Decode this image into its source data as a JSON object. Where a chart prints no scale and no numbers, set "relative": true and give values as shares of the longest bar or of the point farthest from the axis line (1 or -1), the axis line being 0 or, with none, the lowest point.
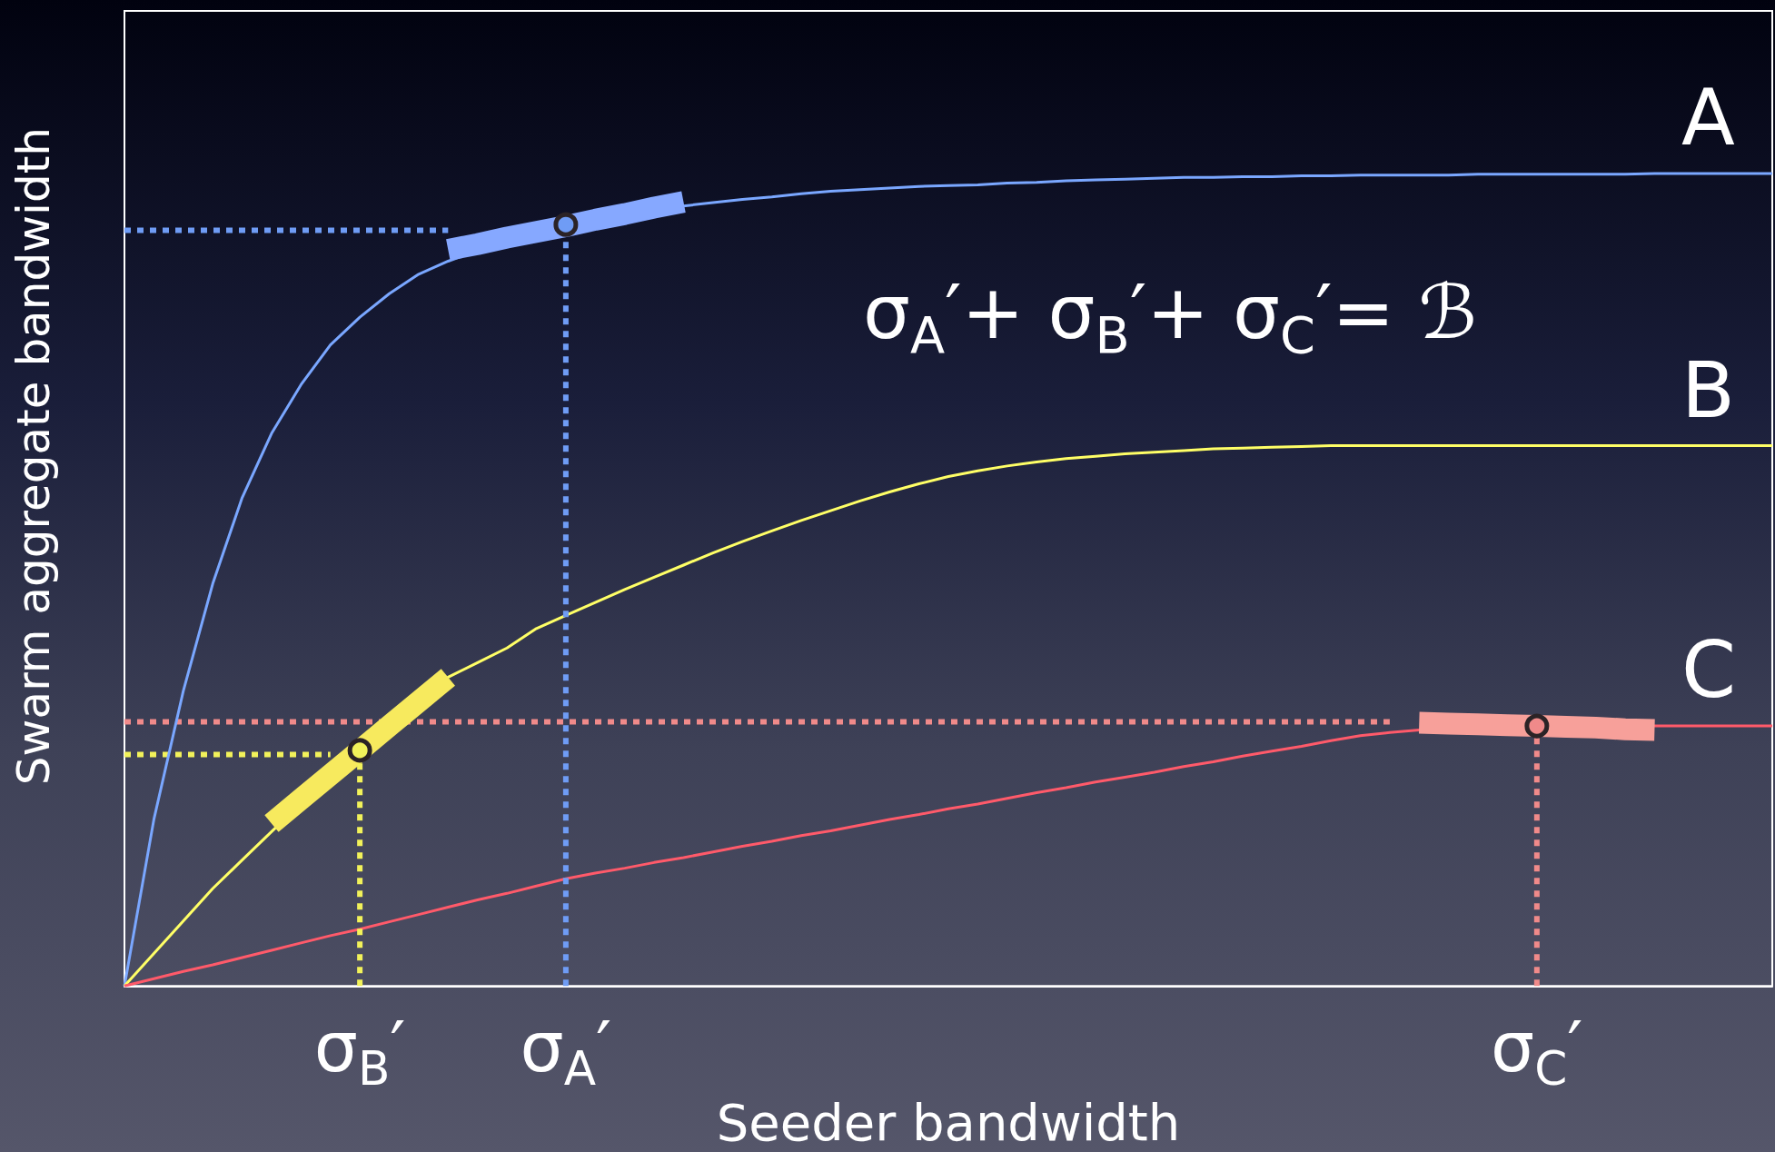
{
  "chart_data": {
    "type": "line",
    "relative": true,
    "xlabel": "Seeder bandwidth",
    "ylabel": "Swarm aggregate bandwidth",
    "legend": false,
    "grid": false,
    "annotations": [
      "σ$_{A}$′+ σ$_{B}$′+ σ$_{C}$′= ℬ"
    ],
    "categories": [
      null,
      null,
      null,
      null,
      null,
      null,
      null,
      null,
      "σ$_{B}$′",
      null,
      null,
      null,
      null,
      null,
      null,
      "σ$_{A}$′",
      null,
      null,
      null,
      null,
      null,
      null,
      null,
      null,
      null,
      null,
      null,
      null,
      null,
      null,
      null,
      null,
      null,
      null,
      null,
      null,
      null,
      null,
      null,
      null,
      null,
      null,
      null,
      null,
      null,
      null,
      null,
      null,
      "σ$_{C}$′",
      null,
      null,
      null,
      null,
      null,
      null,
      null,
      null
    ],
    "series": [
      {
        "color": "#6f9cf5",
        "line_style": "dotted",
        "values": [
          0.93,
          0.93,
          0.93,
          0.93,
          0.93,
          0.93,
          0.93,
          0.93,
          0.93,
          0.93,
          0.93,
          0.93,
          null,
          null,
          null,
          null,
          null,
          null,
          null,
          null,
          null,
          null,
          null,
          null,
          null,
          null,
          null,
          null,
          null,
          null,
          null,
          null,
          null,
          null,
          null,
          null,
          null,
          null,
          null,
          null,
          null,
          null,
          null,
          null,
          null,
          null,
          null,
          null,
          null,
          null,
          null,
          null,
          null,
          null,
          null,
          null,
          null
        ]
      },
      {
        "color": "#f2f25a",
        "line_style": "dotted",
        "values": [
          0.285,
          0.285,
          0.285,
          0.285,
          0.285,
          0.285,
          0.285,
          0.285,
          null,
          null,
          null,
          null,
          null,
          null,
          null,
          null,
          null,
          null,
          null,
          null,
          null,
          null,
          null,
          null,
          null,
          null,
          null,
          null,
          null,
          null,
          null,
          null,
          null,
          null,
          null,
          null,
          null,
          null,
          null,
          null,
          null,
          null,
          null,
          null,
          null,
          null,
          null,
          null,
          null,
          null,
          null,
          null,
          null,
          null,
          null,
          null,
          null
        ]
      },
      {
        "color": "#f08a8a",
        "line_style": "dotted",
        "values": [
          0.325,
          0.325,
          0.325,
          0.325,
          0.325,
          0.325,
          0.325,
          0.325,
          0.325,
          0.325,
          0.325,
          0.325,
          0.325,
          0.325,
          0.325,
          0.325,
          0.325,
          0.325,
          0.325,
          0.325,
          0.325,
          0.325,
          0.325,
          0.325,
          0.325,
          0.325,
          0.325,
          0.325,
          0.325,
          0.325,
          0.325,
          0.325,
          0.325,
          0.325,
          0.325,
          0.325,
          0.325,
          0.325,
          0.325,
          0.325,
          0.325,
          0.325,
          0.325,
          0.325,
          null,
          null,
          null,
          null,
          null,
          null,
          null,
          null,
          null,
          null,
          null,
          null,
          null
        ]
      },
      {
        "name": "A",
        "color": "#7aa7ff",
        "values": [
          0,
          0.205,
          0.363,
          0.495,
          0.601,
          0.68,
          0.74,
          0.789,
          0.823,
          0.852,
          0.876,
          0.892,
          0.905,
          0.918,
          0.929,
          0.937,
          0.945,
          0.951,
          0.956,
          0.96,
          0.964,
          0.968,
          0.971,
          0.975,
          0.978,
          0.98,
          0.982,
          0.984,
          0.985,
          0.986,
          0.988,
          0.989,
          0.991,
          0.992,
          0.993,
          0.994,
          0.995,
          0.995,
          0.996,
          0.996,
          0.997,
          0.997,
          0.998,
          0.998,
          0.998,
          0.998,
          0.999,
          0.999,
          0.999,
          0.999,
          0.999,
          0.999,
          1,
          1,
          1,
          1,
          1
        ]
      },
      {
        "name": "B",
        "color": "#ffff66",
        "values": [
          0,
          0.04,
          0.08,
          0.12,
          0.155,
          0.19,
          0.225,
          0.258,
          0.29,
          0.322,
          0.352,
          0.38,
          0.398,
          0.416,
          0.44,
          0.456,
          0.472,
          0.488,
          0.503,
          0.518,
          0.533,
          0.547,
          0.56,
          0.573,
          0.585,
          0.597,
          0.608,
          0.618,
          0.627,
          0.634,
          0.64,
          0.645,
          0.649,
          0.652,
          0.655,
          0.657,
          0.659,
          0.661,
          0.662,
          0.663,
          0.664,
          0.665,
          0.665,
          0.665,
          0.665,
          0.665,
          0.665,
          0.665,
          0.665,
          0.665,
          0.665,
          0.665,
          0.665,
          0.665,
          0.665,
          0.665,
          0.665
        ]
      },
      {
        "name": "C",
        "color": "#ff5a6a",
        "values": [
          0,
          0.009,
          0.018,
          0.026,
          0.035,
          0.044,
          0.053,
          0.062,
          0.07,
          0.079,
          0.088,
          0.097,
          0.106,
          0.114,
          0.123,
          0.132,
          0.139,
          0.145,
          0.152,
          0.158,
          0.165,
          0.172,
          0.178,
          0.185,
          0.191,
          0.198,
          0.205,
          0.211,
          0.218,
          0.224,
          0.231,
          0.238,
          0.244,
          0.251,
          0.257,
          0.263,
          0.27,
          0.276,
          0.283,
          0.289,
          0.295,
          0.302,
          0.308,
          0.312,
          0.315,
          0.317,
          0.319,
          0.32,
          0.32,
          0.32,
          0.32,
          0.32,
          0.32,
          0.32,
          0.32,
          0.32,
          0.32
        ]
      },
      {
        "color": "#86a8ff",
        "line_style": "solid",
        "values": [
          null,
          null,
          null,
          null,
          null,
          null,
          null,
          null,
          null,
          null,
          null,
          0.906,
          0.913,
          0.921,
          0.928,
          0.935,
          0.943,
          0.95,
          0.958,
          0.965,
          null,
          null,
          null,
          null,
          null,
          null,
          null,
          null,
          null,
          null,
          null,
          null,
          null,
          null,
          null,
          null,
          null,
          null,
          null,
          null,
          null,
          null,
          null,
          null,
          null,
          null,
          null,
          null,
          null,
          null,
          null,
          null,
          null,
          null,
          null,
          null,
          null
        ]
      },
      {
        "color": "#f7ea5e",
        "line_style": "solid",
        "values": [
          null,
          null,
          null,
          null,
          null,
          0.2,
          0.23,
          0.26,
          0.29,
          0.32,
          0.35,
          0.38,
          null,
          null,
          null,
          null,
          null,
          null,
          null,
          null,
          null,
          null,
          null,
          null,
          null,
          null,
          null,
          null,
          null,
          null,
          null,
          null,
          null,
          null,
          null,
          null,
          null,
          null,
          null,
          null,
          null,
          null,
          null,
          null,
          null,
          null,
          null,
          null,
          null,
          null,
          null,
          null,
          null,
          null,
          null,
          null,
          null
        ]
      },
      {
        "color": "#f7a09a",
        "line_style": "solid",
        "values": [
          null,
          null,
          null,
          null,
          null,
          null,
          null,
          null,
          null,
          null,
          null,
          null,
          null,
          null,
          null,
          null,
          null,
          null,
          null,
          null,
          null,
          null,
          null,
          null,
          null,
          null,
          null,
          null,
          null,
          null,
          null,
          null,
          null,
          null,
          null,
          null,
          null,
          null,
          null,
          null,
          null,
          null,
          null,
          null,
          0.324,
          0.323,
          0.322,
          0.321,
          0.32,
          0.319,
          0.318,
          0.316,
          0.315,
          null,
          null,
          null,
          null
        ]
      },
      {
        "type": "lollipop",
        "color": "#f2f25a",
        "line_style": "dotted",
        "marker": "circle",
        "values": [
          null,
          null,
          null,
          null,
          null,
          null,
          null,
          null,
          0.29,
          null,
          null,
          null,
          null,
          null,
          null,
          null,
          null,
          null,
          null,
          null,
          null,
          null,
          null,
          null,
          null,
          null,
          null,
          null,
          null,
          null,
          null,
          null,
          null,
          null,
          null,
          null,
          null,
          null,
          null,
          null,
          null,
          null,
          null,
          null,
          null,
          null,
          null,
          null,
          null,
          null,
          null,
          null,
          null,
          null,
          null,
          null,
          null
        ]
      },
      {
        "type": "lollipop",
        "color": "#6f9cf5",
        "line_style": "dotted",
        "marker": "circle",
        "values": [
          null,
          null,
          null,
          null,
          null,
          null,
          null,
          null,
          null,
          null,
          null,
          null,
          null,
          null,
          null,
          0.937,
          null,
          null,
          null,
          null,
          null,
          null,
          null,
          null,
          null,
          null,
          null,
          null,
          null,
          null,
          null,
          null,
          null,
          null,
          null,
          null,
          null,
          null,
          null,
          null,
          null,
          null,
          null,
          null,
          null,
          null,
          null,
          null,
          null,
          null,
          null,
          null,
          null,
          null,
          null,
          null,
          null
        ]
      },
      {
        "type": "lollipop",
        "color": "#f08a8a",
        "line_style": "dotted",
        "marker": "circle",
        "values": [
          null,
          null,
          null,
          null,
          null,
          null,
          null,
          null,
          null,
          null,
          null,
          null,
          null,
          null,
          null,
          null,
          null,
          null,
          null,
          null,
          null,
          null,
          null,
          null,
          null,
          null,
          null,
          null,
          null,
          null,
          null,
          null,
          null,
          null,
          null,
          null,
          null,
          null,
          null,
          null,
          null,
          null,
          null,
          null,
          null,
          null,
          null,
          null,
          0.32,
          null,
          null,
          null,
          null,
          null,
          null,
          null,
          null
        ]
      }
    ]
  }
}
